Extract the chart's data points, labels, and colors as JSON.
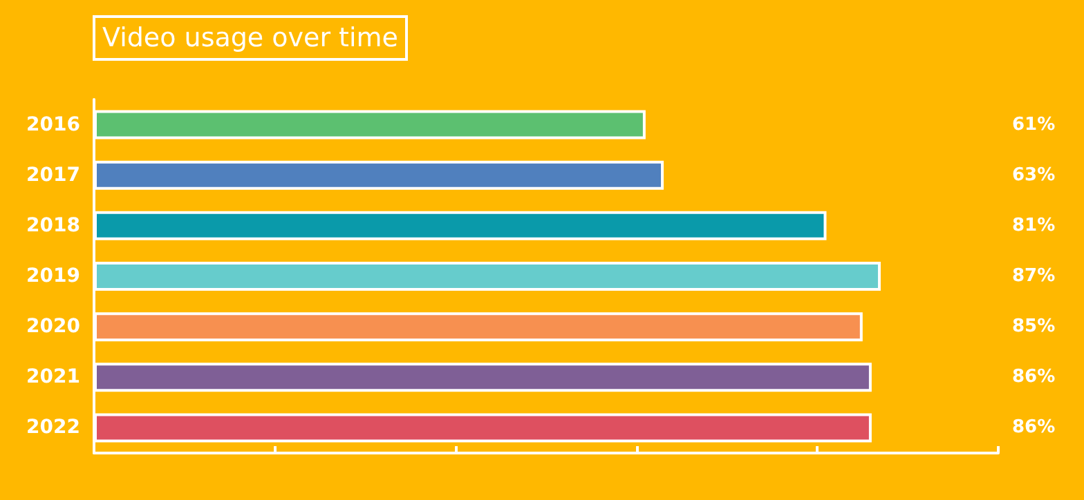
{
  "chart_data": {
    "type": "bar",
    "orientation": "horizontal",
    "title": "Video usage over time",
    "categories": [
      "2016",
      "2017",
      "2018",
      "2019",
      "2020",
      "2021",
      "2022"
    ],
    "values": [
      61,
      63,
      81,
      87,
      85,
      86,
      86
    ],
    "colors": [
      "#5cc070",
      "#5080be",
      "#0a9aaa",
      "#66cccc",
      "#f79050",
      "#7f5f96",
      "#de5060"
    ],
    "value_labels": [
      "61%",
      "63%",
      "81%",
      "87%",
      "85%",
      "86%",
      "86%"
    ],
    "xlim": [
      0,
      100
    ],
    "xticks": [
      {
        "value": 0,
        "label": null
      },
      {
        "value": 20,
        "label": null
      },
      {
        "value": 40,
        "label": null
      },
      {
        "value": 60,
        "label": null
      },
      {
        "value": 80,
        "label": null
      },
      {
        "value": 100,
        "label": null
      }
    ],
    "tick_labels": "y",
    "grid": false
  }
}
